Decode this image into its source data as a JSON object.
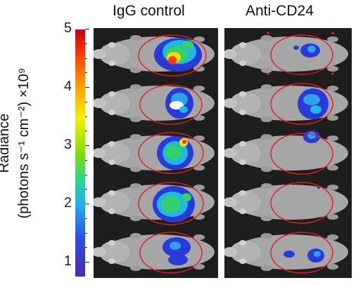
{
  "columns": [
    "IgG control",
    "Anti-CD24"
  ],
  "colorbar": {
    "label_line1": "Radiance",
    "label_line2": "(photons s⁻¹ cm⁻²) ×10⁹",
    "ticks": [
      "5",
      "4",
      "3",
      "2",
      "1"
    ]
  },
  "panels": {
    "left": {
      "name": "IgG control",
      "mice": 5
    },
    "right": {
      "name": "Anti-CD24",
      "mice": 5
    }
  }
}
